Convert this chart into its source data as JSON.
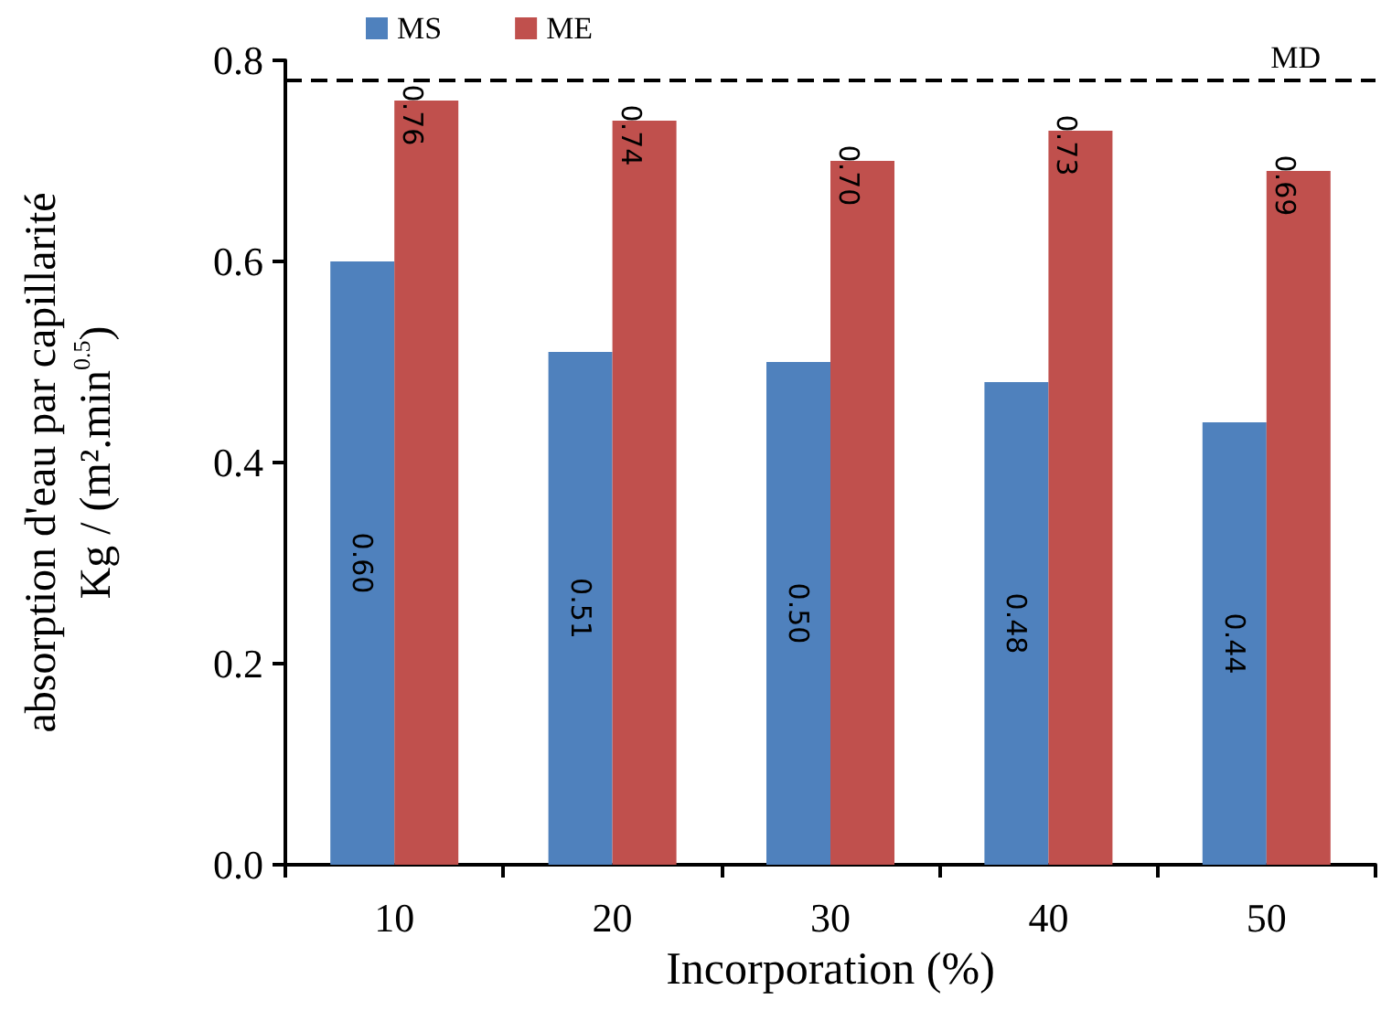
{
  "chart_data": {
    "type": "bar",
    "xlabel": "Incorporation (%)",
    "ylabel": "absorption d'eau par capillarité\nKg / (m².min$^{0.5}$)",
    "categories": [
      "10",
      "20",
      "30",
      "40",
      "50"
    ],
    "series": [
      {
        "name": "MS",
        "color": "#4f81bd",
        "values": [
          0.6,
          0.51,
          0.5,
          0.48,
          0.44
        ],
        "value_labels": [
          "0.60",
          "0.51",
          "0.50",
          "0.48",
          "0.44"
        ]
      },
      {
        "name": "ME",
        "color": "#c0504d",
        "values": [
          0.76,
          0.74,
          0.7,
          0.73,
          0.69
        ],
        "value_labels": [
          "0.76",
          "0.74",
          "0.70",
          "0.73",
          "0.69"
        ]
      }
    ],
    "ylim": [
      0,
      0.8
    ],
    "yticks": [
      "0.0",
      "0.2",
      "0.4",
      "0.6",
      "0.8"
    ],
    "ref_lines": [
      {
        "axis": "y",
        "value": 0.78,
        "label": "MD",
        "color": "#000000",
        "line_style": "dashed"
      }
    ],
    "grid": false,
    "legend": "top"
  }
}
